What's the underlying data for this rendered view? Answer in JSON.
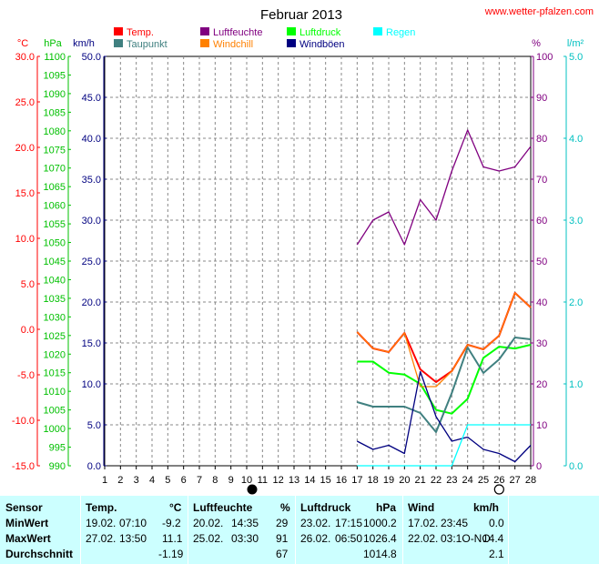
{
  "title": "Februar 2013",
  "website": "www.wetter-pfalzen.com",
  "units": {
    "temp": "°C",
    "pressure": "hPa",
    "wind": "km/h",
    "humidity": "%",
    "rain": "l/m²"
  },
  "legend": [
    {
      "label": "Temp.",
      "color": "#ff0000"
    },
    {
      "label": "Luftfeuchte",
      "color": "#800080"
    },
    {
      "label": "Luftdruck",
      "color": "#00ff00"
    },
    {
      "label": "Regen",
      "color": "#00ffff"
    },
    {
      "label": "Taupunkt",
      "color": "#408080"
    },
    {
      "label": "Windchill",
      "color": "#ff8000"
    },
    {
      "label": "Windböen",
      "color": "#000080"
    }
  ],
  "chart_data": {
    "type": "line",
    "title": "Februar 2013",
    "x": [
      17,
      18,
      19,
      20,
      21,
      22,
      23,
      24,
      25,
      26,
      27,
      28
    ],
    "xticks": [
      "1",
      "2",
      "3",
      "4",
      "5",
      "6",
      "7",
      "8",
      "9",
      "10",
      "11",
      "12",
      "13",
      "14",
      "15",
      "16",
      "17",
      "18",
      "19",
      "20",
      "21",
      "22",
      "23",
      "24",
      "25",
      "26",
      "27",
      "28"
    ],
    "xlim": [
      1,
      28
    ],
    "axes": {
      "temp": {
        "label": "°C",
        "ylim": [
          -15,
          30
        ],
        "ticks": [
          "30.0",
          "25.0",
          "20.0",
          "15.0",
          "10.0",
          "5.0",
          "0.0",
          "-5.0",
          "-10.0",
          "-15.0"
        ],
        "color": "#ff0000"
      },
      "pressure": {
        "label": "hPa",
        "ylim": [
          990,
          1100
        ],
        "ticks": [
          "1100",
          "1095",
          "1090",
          "1085",
          "1080",
          "1075",
          "1070",
          "1065",
          "1060",
          "1055",
          "1050",
          "1045",
          "1040",
          "1035",
          "1030",
          "1025",
          "1020",
          "1015",
          "1010",
          "1005",
          "1000",
          "995",
          "990"
        ],
        "color": "#00c000"
      },
      "wind": {
        "label": "km/h",
        "ylim": [
          0,
          50
        ],
        "ticks": [
          "50.0",
          "45.0",
          "40.0",
          "35.0",
          "30.0",
          "25.0",
          "20.0",
          "15.0",
          "10.0",
          "5.0",
          "0.0"
        ],
        "color": "#000080"
      },
      "humidity": {
        "label": "%",
        "ylim": [
          0,
          100
        ],
        "ticks": [
          "100",
          "90",
          "80",
          "70",
          "60",
          "50",
          "40",
          "30",
          "20",
          "10",
          "0"
        ],
        "color": "#800080"
      },
      "rain": {
        "label": "l/m²",
        "ylim": [
          0,
          5
        ],
        "ticks": [
          "5.0",
          "4.0",
          "3.0",
          "2.0",
          "1.0",
          "0.0"
        ],
        "color": "#00c0c0"
      }
    },
    "grid": true,
    "series": [
      {
        "name": "Luftfeuchte",
        "axis": "humidity",
        "color": "#800080",
        "values": [
          54,
          60,
          62,
          54,
          65,
          60,
          72,
          82,
          73,
          72,
          73,
          78
        ]
      },
      {
        "name": "Temp.",
        "axis": "temp",
        "color": "#ff0000",
        "values": [
          -0.3,
          -2.1,
          -2.5,
          -0.4,
          -4.4,
          -5.8,
          -4.6,
          -1.7,
          -2.2,
          -0.7,
          4.0,
          2.4
        ]
      },
      {
        "name": "Luftdruck",
        "axis": "pressure",
        "color": "#00ff00",
        "values": [
          1018,
          1018,
          1015,
          1014.5,
          1012,
          1005,
          1004,
          1008,
          1019,
          1022,
          1021.5,
          1022.5
        ]
      },
      {
        "name": "Taupunkt",
        "axis": "temp",
        "color": "#408080",
        "values": [
          -8.0,
          -8.5,
          -8.5,
          -8.5,
          -9.2,
          -11.3,
          -7.0,
          -2.0,
          -4.8,
          -3.3,
          -0.9,
          -1.1
        ]
      },
      {
        "name": "Windchill",
        "axis": "temp",
        "color": "#ff8000",
        "values": [
          -0.3,
          -2.1,
          -2.5,
          -0.4,
          -6.3,
          -6.3,
          -4.6,
          -1.7,
          -2.2,
          -0.7,
          4.0,
          2.4
        ]
      },
      {
        "name": "Windböen",
        "axis": "wind",
        "color": "#000080",
        "values": [
          3.0,
          2.0,
          2.5,
          1.5,
          11.5,
          6.0,
          3.0,
          3.5,
          2.0,
          1.5,
          0.5,
          2.5
        ]
      },
      {
        "name": "Regen",
        "axis": "rain",
        "color": "#00ffff",
        "x": [
          17,
          18,
          19,
          20,
          21,
          22,
          23,
          24,
          25,
          26,
          27,
          28
        ],
        "values": [
          0,
          0,
          0,
          0,
          0,
          0,
          0,
          0.5,
          0.5,
          0.5,
          0.5,
          0.5
        ]
      }
    ]
  },
  "moon": {
    "new_moon_day": 10,
    "full_moon_day": 26
  },
  "stats": {
    "headers": {
      "sensor": "Sensor",
      "temp": "Temp.",
      "temp_unit": "°C",
      "hum": "Luftfeuchte",
      "hum_unit": "%",
      "press": "Luftdruck",
      "press_unit": "hPa",
      "wind": "Wind",
      "wind_unit": "km/h"
    },
    "rows": [
      {
        "label": "MinWert",
        "temp_date": "19.02.",
        "temp_time": "07:10",
        "temp_val": "-9.2",
        "hum_date": "20.02.",
        "hum_time": "14:35",
        "hum_val": "29",
        "press_date": "23.02.",
        "press_time": "17:15",
        "press_val": "1000.2",
        "wind_date": "17.02.",
        "wind_time": "23:45",
        "wind_val": "0.0"
      },
      {
        "label": "MaxWert",
        "temp_date": "27.02.",
        "temp_time": "13:50",
        "temp_val": "11.1",
        "hum_date": "25.02.",
        "hum_time": "03:30",
        "hum_val": "91",
        "press_date": "26.02.",
        "press_time": "06:50",
        "press_val": "1026.4",
        "wind_date": "22.02.",
        "wind_time": "03:1O-NO",
        "wind_val": "14.4"
      },
      {
        "label": "Durchschnitt",
        "temp_date": "",
        "temp_time": "",
        "temp_val": "-1.19",
        "hum_date": "",
        "hum_time": "",
        "hum_val": "67",
        "press_date": "",
        "press_time": "",
        "press_val": "1014.8",
        "wind_date": "",
        "wind_time": "",
        "wind_val": "2.1"
      }
    ]
  }
}
